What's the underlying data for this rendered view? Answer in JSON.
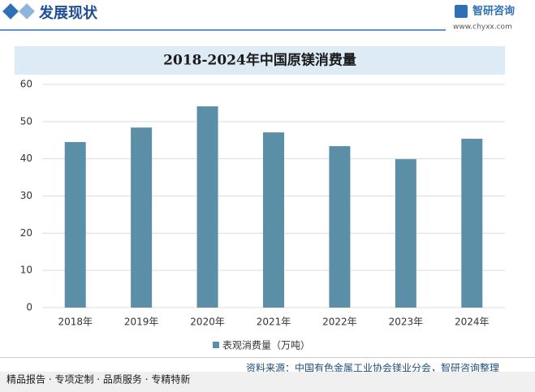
{
  "header": {
    "title": "发展现状",
    "logo": "智研咨询",
    "url": "www.chyxx.com"
  },
  "chart_data": {
    "type": "bar",
    "title": "2018-2024年中国原镁消费量",
    "categories": [
      "2018年",
      "2019年",
      "2020年",
      "2021年",
      "2022年",
      "2023年",
      "2024年"
    ],
    "series": [
      {
        "name": "表观消费量（万吨）",
        "color": "#5b8fa8",
        "values": [
          44.5,
          48.4,
          54.1,
          47.1,
          43.4,
          39.9,
          45.4
        ]
      }
    ],
    "ylim": [
      0,
      60
    ],
    "yticks": [
      0,
      10,
      20,
      30,
      40,
      50,
      60
    ],
    "grid": true,
    "legend": "bottom"
  },
  "footer": {
    "slogan": "精品报告 · 专项定制 · 品质服务 · 专精特新",
    "source": "资料来源：中国有色金属工业协会镁业分会，智研咨询整理"
  }
}
